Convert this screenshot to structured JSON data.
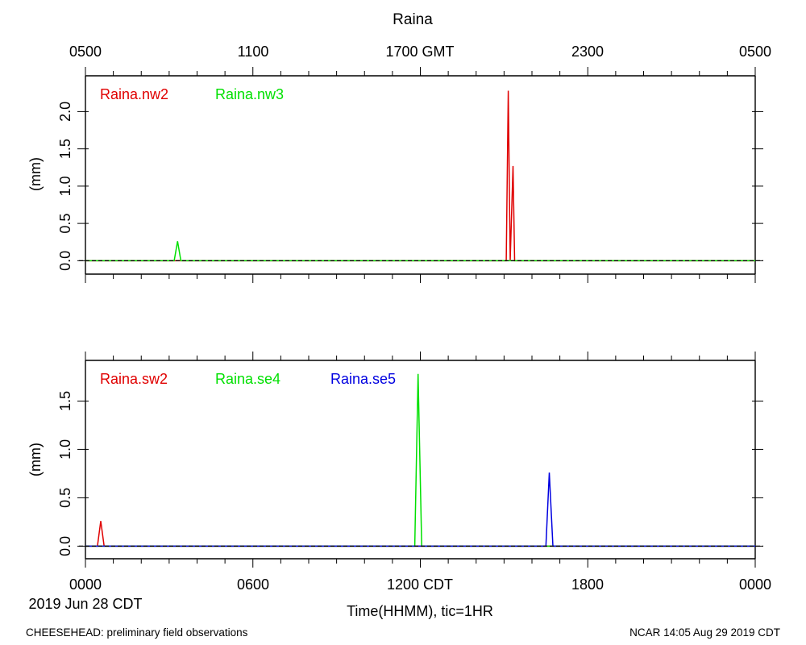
{
  "title": "Raina",
  "top_axis_ticks": [
    "0500",
    "1100",
    "1700 GMT",
    "2300",
    "0500"
  ],
  "bottom_axis_ticks": [
    "0000",
    "0600",
    "1200 CDT",
    "1800",
    "0000"
  ],
  "date_label": "2019 Jun 28 CDT",
  "xlabel": "Time(HHMM), tic=1HR",
  "footer_left": "CHEESEHEAD: preliminary field observations",
  "footer_right": "NCAR 14:05 Aug 29 2019 CDT",
  "colors": {
    "red": "#e00000",
    "green": "#00e000",
    "blue": "#0000e0",
    "baseline": "#000000"
  },
  "chart_data": [
    {
      "type": "line",
      "ylabel": "(mm)",
      "xlim_hours": [
        0,
        24
      ],
      "ylim": [
        -0.18,
        2.48
      ],
      "yticks": [
        0.0,
        0.5,
        1.0,
        1.5,
        2.0
      ],
      "ytick_labels": [
        "0.0",
        "0.5",
        "1.0",
        "1.5",
        "2.0"
      ],
      "series": [
        {
          "name": "Raina.nw2",
          "color": "#e00000",
          "x": [
            0,
            15.08,
            15.15,
            15.22,
            15.32,
            15.38,
            24
          ],
          "y": [
            0,
            0,
            2.28,
            0,
            1.27,
            0,
            0
          ]
        },
        {
          "name": "Raina.nw3",
          "color": "#00e000",
          "x": [
            0,
            3.18,
            3.3,
            3.42,
            24
          ],
          "y": [
            0,
            0,
            0.26,
            0,
            0
          ]
        }
      ]
    },
    {
      "type": "line",
      "ylabel": "(mm)",
      "xlim_hours": [
        0,
        24
      ],
      "ylim": [
        -0.13,
        1.92
      ],
      "yticks": [
        0.0,
        0.5,
        1.0,
        1.5
      ],
      "ytick_labels": [
        "0.0",
        "0.5",
        "1.0",
        "1.5"
      ],
      "series": [
        {
          "name": "Raina.sw2",
          "color": "#e00000",
          "x": [
            0,
            0.43,
            0.55,
            0.67,
            24
          ],
          "y": [
            0,
            0,
            0.26,
            0,
            0
          ]
        },
        {
          "name": "Raina.se4",
          "color": "#00e000",
          "x": [
            0,
            11.8,
            11.92,
            12.05,
            24
          ],
          "y": [
            0,
            0,
            1.78,
            0,
            0
          ]
        },
        {
          "name": "Raina.se5",
          "color": "#0000e0",
          "x": [
            0,
            16.5,
            16.62,
            16.75,
            24
          ],
          "y": [
            0,
            0,
            0.76,
            0,
            0
          ]
        }
      ]
    }
  ]
}
